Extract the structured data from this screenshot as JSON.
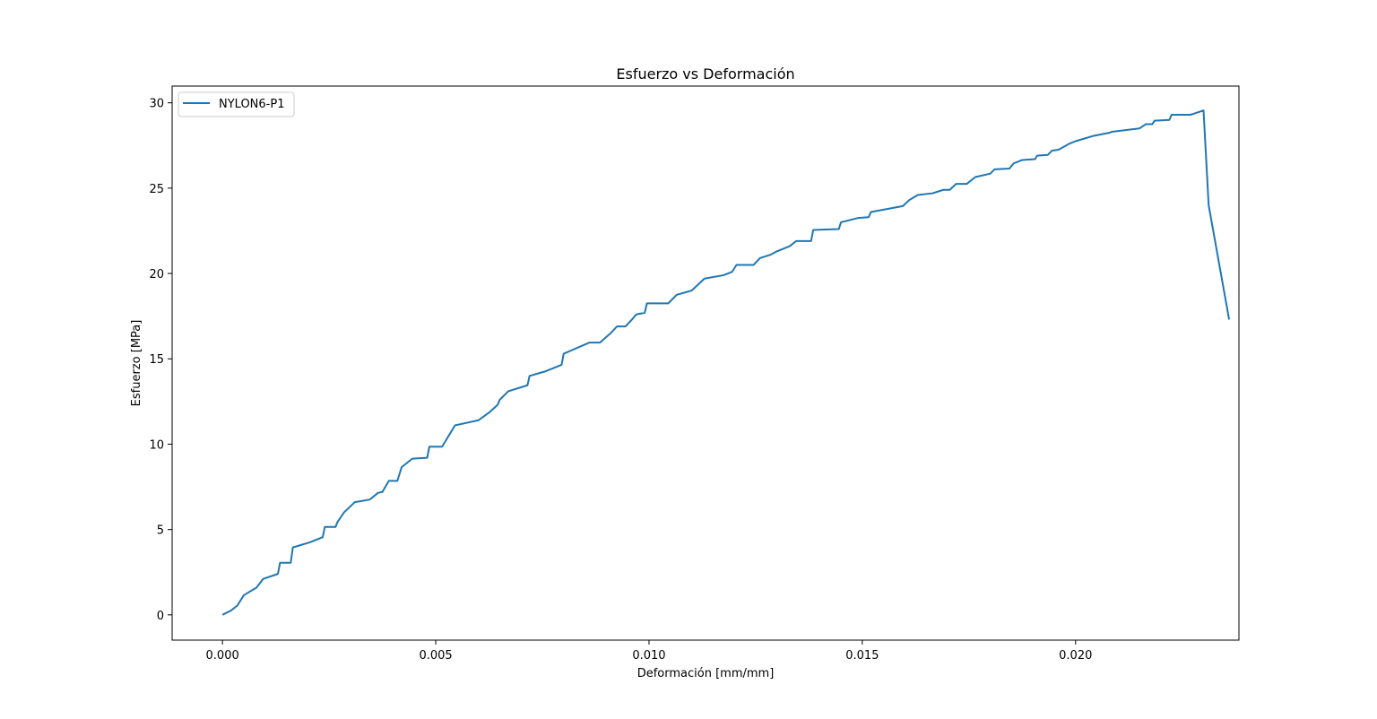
{
  "chart_data": {
    "type": "line",
    "title": "Esfuerzo vs Deformación",
    "xlabel": "Deformación [mm/mm]",
    "ylabel": "Esfuerzo [MPa]",
    "xlim": [
      -0.00118,
      0.02383
    ],
    "ylim": [
      -1.48,
      30.98
    ],
    "xticks": [
      0.0,
      0.005,
      0.01,
      0.015,
      0.02
    ],
    "xtick_labels": [
      "0.000",
      "0.005",
      "0.010",
      "0.015",
      "0.020"
    ],
    "yticks": [
      0,
      5,
      10,
      15,
      20,
      25,
      30
    ],
    "ytick_labels": [
      "0",
      "5",
      "10",
      "15",
      "20",
      "25",
      "30"
    ],
    "grid": false,
    "legend_position": "top-left",
    "series": [
      {
        "name": "NYLON6-P1",
        "color": "#1f77b4",
        "x": [
          0.0,
          0.0002,
          0.00035,
          0.0005,
          0.0008,
          0.00095,
          0.0013,
          0.00135,
          0.0016,
          0.00165,
          0.00205,
          0.00235,
          0.0024,
          0.00265,
          0.0027,
          0.00285,
          0.0031,
          0.00345,
          0.00365,
          0.00375,
          0.0039,
          0.0041,
          0.0042,
          0.00445,
          0.0048,
          0.00485,
          0.00515,
          0.00545,
          0.006,
          0.00625,
          0.00645,
          0.0065,
          0.0067,
          0.00715,
          0.0072,
          0.00755,
          0.00795,
          0.008,
          0.0086,
          0.00885,
          0.0091,
          0.00925,
          0.00945,
          0.0096,
          0.0097,
          0.0099,
          0.00995,
          0.01045,
          0.01065,
          0.011,
          0.0113,
          0.01175,
          0.01195,
          0.01205,
          0.01245,
          0.0126,
          0.01285,
          0.013,
          0.0133,
          0.01345,
          0.01365,
          0.0138,
          0.01385,
          0.01445,
          0.0145,
          0.0149,
          0.01515,
          0.0152,
          0.01595,
          0.0161,
          0.0163,
          0.01665,
          0.0169,
          0.01705,
          0.0172,
          0.01745,
          0.01765,
          0.018,
          0.0181,
          0.01845,
          0.01855,
          0.01875,
          0.01905,
          0.0191,
          0.01935,
          0.01945,
          0.0196,
          0.01985,
          0.02,
          0.0204,
          0.0208,
          0.02085,
          0.0215,
          0.02165,
          0.0218,
          0.02185,
          0.0222,
          0.02225,
          0.0227,
          0.023,
          0.02312,
          0.0236
        ],
        "y": [
          0.0,
          0.25,
          0.55,
          1.15,
          1.6,
          2.1,
          2.4,
          3.05,
          3.05,
          3.95,
          4.25,
          4.55,
          5.15,
          5.15,
          5.45,
          6.0,
          6.6,
          6.75,
          7.15,
          7.2,
          7.85,
          7.85,
          8.65,
          9.15,
          9.2,
          9.85,
          9.85,
          11.1,
          11.4,
          11.85,
          12.3,
          12.6,
          13.1,
          13.45,
          14.0,
          14.25,
          14.65,
          15.3,
          15.95,
          15.95,
          16.5,
          16.9,
          16.9,
          17.3,
          17.6,
          17.7,
          18.25,
          18.25,
          18.75,
          19.0,
          19.7,
          19.9,
          20.1,
          20.5,
          20.5,
          20.9,
          21.1,
          21.3,
          21.6,
          21.9,
          21.9,
          21.9,
          22.55,
          22.6,
          23.0,
          23.25,
          23.3,
          23.6,
          23.95,
          24.3,
          24.6,
          24.7,
          24.9,
          24.9,
          25.25,
          25.25,
          25.65,
          25.85,
          26.1,
          26.15,
          26.45,
          26.65,
          26.7,
          26.9,
          26.95,
          27.2,
          27.25,
          27.6,
          27.75,
          28.05,
          28.25,
          28.3,
          28.5,
          28.75,
          28.75,
          28.95,
          29.0,
          29.3,
          29.3,
          29.55,
          24.0,
          17.3
        ]
      }
    ]
  }
}
